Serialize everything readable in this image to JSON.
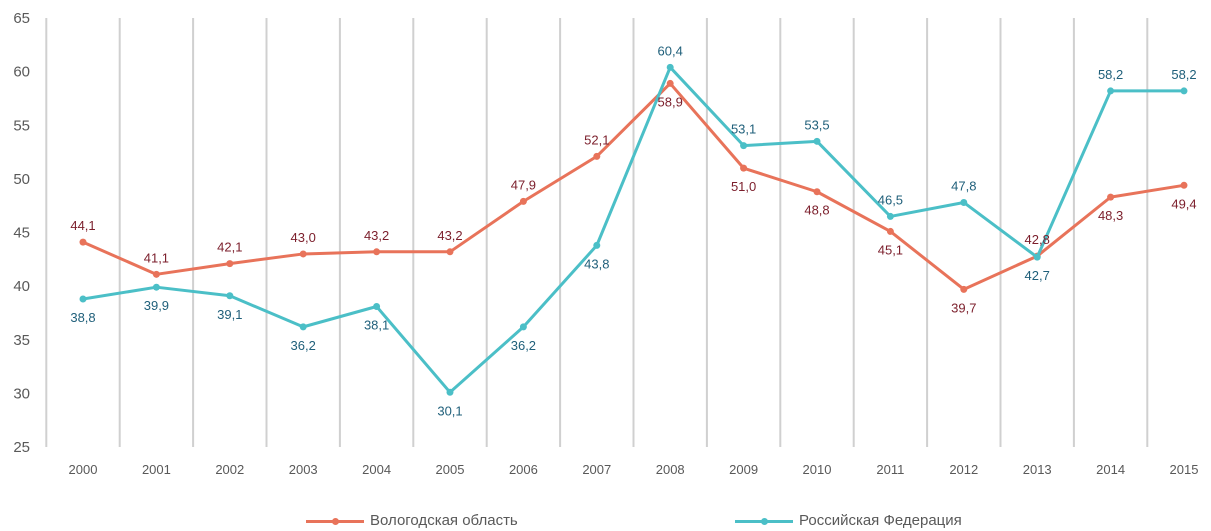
{
  "chart_data": {
    "type": "line",
    "title": "",
    "xlabel": "",
    "ylabel": "",
    "ylim": [
      25,
      65
    ],
    "yticks": [
      25,
      30,
      35,
      40,
      45,
      50,
      55,
      60,
      65
    ],
    "grid": "vertical",
    "legend_position": "bottom",
    "categories": [
      "2000",
      "2001",
      "2002",
      "2003",
      "2004",
      "2005",
      "2006",
      "2007",
      "2008",
      "2009",
      "2010",
      "2011",
      "2012",
      "2013",
      "2014",
      "2015"
    ],
    "series": [
      {
        "name": "Вологодская область",
        "color": "#e8735a",
        "label_color": "#7b1e2b",
        "values": [
          44.1,
          41.1,
          42.1,
          43.0,
          43.2,
          43.2,
          47.9,
          52.1,
          58.9,
          51.0,
          48.8,
          45.1,
          39.7,
          42.8,
          48.3,
          49.4
        ],
        "labels": [
          "44,1",
          "41,1",
          "42,1",
          "43,0",
          "43,2",
          "43,2",
          "47,9",
          "52,1",
          "58,9",
          "51,0",
          "48,8",
          "45,1",
          "39,7",
          "42,8",
          "48,3",
          "49,4"
        ]
      },
      {
        "name": "Российская Федерация",
        "color": "#4bbfc7",
        "label_color": "#1f5f7a",
        "values": [
          38.8,
          39.9,
          39.1,
          36.2,
          38.1,
          30.1,
          36.2,
          43.8,
          60.4,
          53.1,
          53.5,
          46.5,
          47.8,
          42.7,
          58.2,
          58.2
        ],
        "labels": [
          "38,8",
          "39,9",
          "39,1",
          "36,2",
          "38,1",
          "30,1",
          "36,2",
          "43,8",
          "60,4",
          "53,1",
          "53,5",
          "46,5",
          "47,8",
          "42,7",
          "58,2",
          "58,2"
        ]
      }
    ]
  }
}
